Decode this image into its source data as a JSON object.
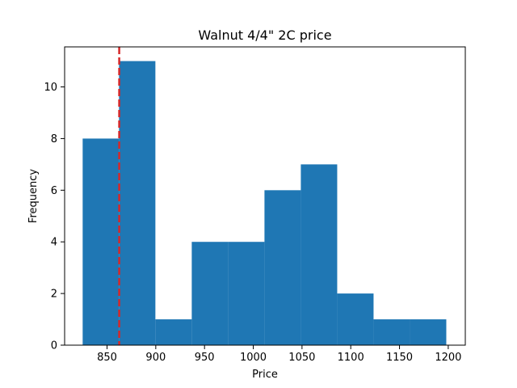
{
  "chart_data": {
    "type": "bar",
    "subtype": "histogram",
    "title": "Walnut 4/4\" 2C price",
    "xlabel": "Price",
    "ylabel": "Frequency",
    "xlim": [
      806.5,
      1217.5
    ],
    "ylim": [
      0,
      11.55
    ],
    "xticks": [
      850,
      900,
      950,
      1000,
      1050,
      1100,
      1150,
      1200
    ],
    "yticks": [
      0,
      2,
      4,
      6,
      8,
      10
    ],
    "bins": [
      {
        "start": 825.0,
        "end": 862.3,
        "count": 8
      },
      {
        "start": 862.3,
        "end": 899.6,
        "count": 11
      },
      {
        "start": 899.6,
        "end": 936.9,
        "count": 1
      },
      {
        "start": 936.9,
        "end": 974.2,
        "count": 4
      },
      {
        "start": 974.2,
        "end": 1011.5,
        "count": 4
      },
      {
        "start": 1011.5,
        "end": 1048.8,
        "count": 6
      },
      {
        "start": 1048.8,
        "end": 1086.1,
        "count": 7
      },
      {
        "start": 1086.1,
        "end": 1123.4,
        "count": 2
      },
      {
        "start": 1123.4,
        "end": 1160.7,
        "count": 1
      },
      {
        "start": 1160.7,
        "end": 1198.0,
        "count": 1
      }
    ],
    "reference_line": {
      "x": 862.5,
      "style": "dashed",
      "color": "#d62728"
    },
    "bar_color": "#1f77b4",
    "grid": false,
    "legend": "none"
  }
}
